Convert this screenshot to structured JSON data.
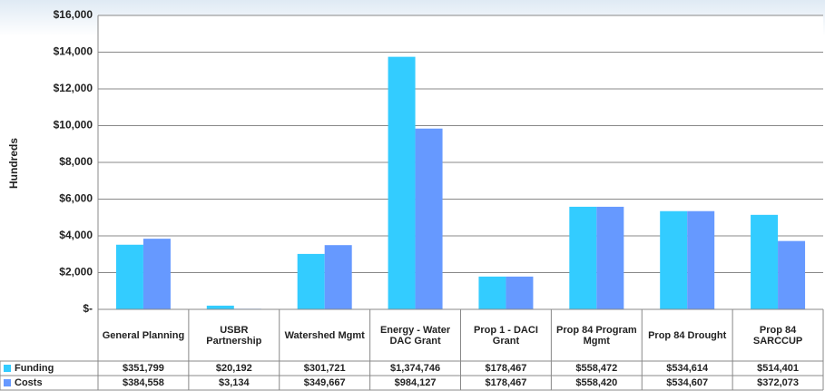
{
  "chart_data": {
    "type": "bar",
    "y_label": "Hundreds",
    "categories": [
      "General Planning",
      "USBR Partnership",
      "Watershed Mgmt",
      "Energy - Water DAC Grant",
      "Prop 1 - DACI Grant",
      "Prop 84 Program Mgmt",
      "Prop 84 Drought",
      "Prop 84 SARCCUP"
    ],
    "series": [
      {
        "name": "Funding",
        "color": "#33ccff",
        "values": [
          3517.99,
          201.92,
          3017.21,
          13747.46,
          1784.67,
          5584.72,
          5346.14,
          5144.01
        ],
        "value_labels": [
          "$351,799",
          "$20,192",
          "$301,721",
          "$1,374,746",
          "$178,467",
          "$558,472",
          "$534,614",
          "$514,401"
        ]
      },
      {
        "name": "Costs",
        "color": "#6699ff",
        "values": [
          3845.58,
          31.34,
          3496.67,
          9841.27,
          1784.67,
          5584.2,
          5346.07,
          3720.73
        ],
        "value_labels": [
          "$384,558",
          "$3,134",
          "$349,667",
          "$984,127",
          "$178,467",
          "$558,420",
          "$534,607",
          "$372,073"
        ]
      }
    ],
    "ylim": [
      0,
      16000
    ],
    "yticks": [
      {
        "value": 0,
        "label": "$-"
      },
      {
        "value": 2000,
        "label": "$2,000"
      },
      {
        "value": 4000,
        "label": "$4,000"
      },
      {
        "value": 6000,
        "label": "$6,000"
      },
      {
        "value": 8000,
        "label": "$8,000"
      },
      {
        "value": 10000,
        "label": "$10,000"
      },
      {
        "value": 12000,
        "label": "$12,000"
      },
      {
        "value": 14000,
        "label": "$14,000"
      },
      {
        "value": 16000,
        "label": "$16,000"
      }
    ],
    "grid": true
  }
}
